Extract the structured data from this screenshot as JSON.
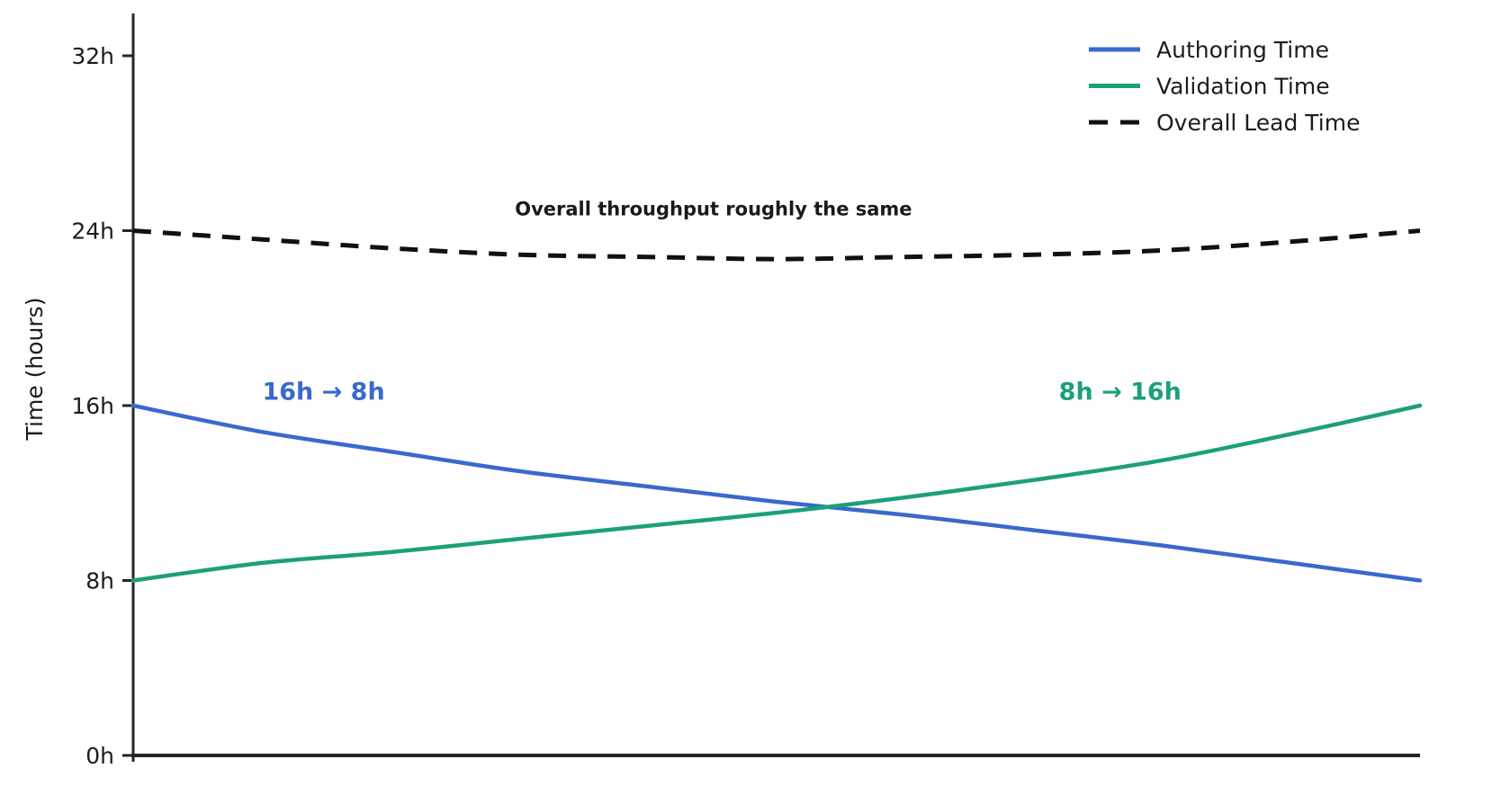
{
  "page": {
    "background_color": "#ffffff"
  },
  "chart_data": {
    "type": "line",
    "title": "",
    "xlabel": "",
    "ylabel": "Time (hours)",
    "ylim": [
      0,
      32
    ],
    "grid": false,
    "yticks": [
      {
        "label": "0h",
        "value": 0
      },
      {
        "label": "8h",
        "value": 8
      },
      {
        "label": "16h",
        "value": 16
      },
      {
        "label": "24h",
        "value": 24
      },
      {
        "label": "32h",
        "value": 32
      }
    ],
    "x_axis": {
      "tick_labels_visible": false,
      "range_normalized": [
        0,
        1
      ]
    },
    "x_normalized": [
      0,
      0.1,
      0.2,
      0.3,
      0.4,
      0.5,
      0.6,
      0.7,
      0.8,
      0.9,
      1.0
    ],
    "series": [
      {
        "name": "Authoring Time",
        "color": "#3a68cf",
        "line_style": "solid",
        "values": [
          16.0,
          14.8,
          13.9,
          13.0,
          12.3,
          11.6,
          11.0,
          10.3,
          9.6,
          8.8,
          8.0
        ]
      },
      {
        "name": "Validation Time",
        "color": "#1ca07a",
        "line_style": "solid",
        "values": [
          8.0,
          8.8,
          9.3,
          9.9,
          10.5,
          11.1,
          11.8,
          12.6,
          13.5,
          14.7,
          16.0
        ]
      },
      {
        "name": "Overall Lead Time",
        "color": "#111111",
        "line_style": "dashed",
        "values": [
          24.0,
          23.6,
          23.2,
          22.9,
          22.8,
          22.7,
          22.8,
          22.9,
          23.1,
          23.5,
          24.0
        ]
      }
    ],
    "legend": {
      "position": "upper right",
      "frame": false
    },
    "annotations": [
      {
        "text": "Overall throughput roughly the same",
        "color": "#1a1a1a",
        "x_t": 0.451,
        "y_hours": 25.0
      },
      {
        "text": "16h → 8h",
        "color": "#3a68cf",
        "x_t": 0.148,
        "y_hours": 16.65
      },
      {
        "text": "8h → 16h",
        "color": "#1ca07a",
        "x_t": 0.767,
        "y_hours": 16.65
      }
    ]
  }
}
